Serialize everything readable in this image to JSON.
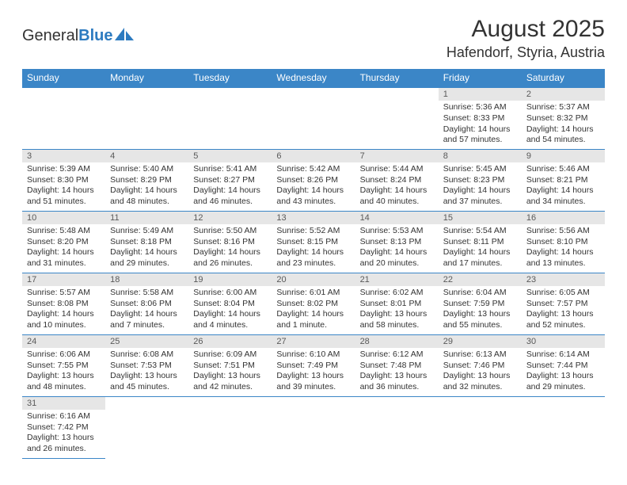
{
  "logo": {
    "general": "General",
    "blue": "Blue"
  },
  "title": "August 2025",
  "location": "Hafendorf, Styria, Austria",
  "colors": {
    "header_bg": "#3b86c7",
    "header_fg": "#ffffff",
    "daynum_bg": "#e6e6e6",
    "daynum_fg": "#595959",
    "border": "#3b86c7",
    "text": "#333333",
    "logo_blue": "#2d7bc0"
  },
  "weekdays": [
    "Sunday",
    "Monday",
    "Tuesday",
    "Wednesday",
    "Thursday",
    "Friday",
    "Saturday"
  ],
  "grid": [
    [
      null,
      null,
      null,
      null,
      null,
      {
        "day": "1",
        "sunrise": "Sunrise: 5:36 AM",
        "sunset": "Sunset: 8:33 PM",
        "daylight1": "Daylight: 14 hours",
        "daylight2": "and 57 minutes."
      },
      {
        "day": "2",
        "sunrise": "Sunrise: 5:37 AM",
        "sunset": "Sunset: 8:32 PM",
        "daylight1": "Daylight: 14 hours",
        "daylight2": "and 54 minutes."
      }
    ],
    [
      {
        "day": "3",
        "sunrise": "Sunrise: 5:39 AM",
        "sunset": "Sunset: 8:30 PM",
        "daylight1": "Daylight: 14 hours",
        "daylight2": "and 51 minutes."
      },
      {
        "day": "4",
        "sunrise": "Sunrise: 5:40 AM",
        "sunset": "Sunset: 8:29 PM",
        "daylight1": "Daylight: 14 hours",
        "daylight2": "and 48 minutes."
      },
      {
        "day": "5",
        "sunrise": "Sunrise: 5:41 AM",
        "sunset": "Sunset: 8:27 PM",
        "daylight1": "Daylight: 14 hours",
        "daylight2": "and 46 minutes."
      },
      {
        "day": "6",
        "sunrise": "Sunrise: 5:42 AM",
        "sunset": "Sunset: 8:26 PM",
        "daylight1": "Daylight: 14 hours",
        "daylight2": "and 43 minutes."
      },
      {
        "day": "7",
        "sunrise": "Sunrise: 5:44 AM",
        "sunset": "Sunset: 8:24 PM",
        "daylight1": "Daylight: 14 hours",
        "daylight2": "and 40 minutes."
      },
      {
        "day": "8",
        "sunrise": "Sunrise: 5:45 AM",
        "sunset": "Sunset: 8:23 PM",
        "daylight1": "Daylight: 14 hours",
        "daylight2": "and 37 minutes."
      },
      {
        "day": "9",
        "sunrise": "Sunrise: 5:46 AM",
        "sunset": "Sunset: 8:21 PM",
        "daylight1": "Daylight: 14 hours",
        "daylight2": "and 34 minutes."
      }
    ],
    [
      {
        "day": "10",
        "sunrise": "Sunrise: 5:48 AM",
        "sunset": "Sunset: 8:20 PM",
        "daylight1": "Daylight: 14 hours",
        "daylight2": "and 31 minutes."
      },
      {
        "day": "11",
        "sunrise": "Sunrise: 5:49 AM",
        "sunset": "Sunset: 8:18 PM",
        "daylight1": "Daylight: 14 hours",
        "daylight2": "and 29 minutes."
      },
      {
        "day": "12",
        "sunrise": "Sunrise: 5:50 AM",
        "sunset": "Sunset: 8:16 PM",
        "daylight1": "Daylight: 14 hours",
        "daylight2": "and 26 minutes."
      },
      {
        "day": "13",
        "sunrise": "Sunrise: 5:52 AM",
        "sunset": "Sunset: 8:15 PM",
        "daylight1": "Daylight: 14 hours",
        "daylight2": "and 23 minutes."
      },
      {
        "day": "14",
        "sunrise": "Sunrise: 5:53 AM",
        "sunset": "Sunset: 8:13 PM",
        "daylight1": "Daylight: 14 hours",
        "daylight2": "and 20 minutes."
      },
      {
        "day": "15",
        "sunrise": "Sunrise: 5:54 AM",
        "sunset": "Sunset: 8:11 PM",
        "daylight1": "Daylight: 14 hours",
        "daylight2": "and 17 minutes."
      },
      {
        "day": "16",
        "sunrise": "Sunrise: 5:56 AM",
        "sunset": "Sunset: 8:10 PM",
        "daylight1": "Daylight: 14 hours",
        "daylight2": "and 13 minutes."
      }
    ],
    [
      {
        "day": "17",
        "sunrise": "Sunrise: 5:57 AM",
        "sunset": "Sunset: 8:08 PM",
        "daylight1": "Daylight: 14 hours",
        "daylight2": "and 10 minutes."
      },
      {
        "day": "18",
        "sunrise": "Sunrise: 5:58 AM",
        "sunset": "Sunset: 8:06 PM",
        "daylight1": "Daylight: 14 hours",
        "daylight2": "and 7 minutes."
      },
      {
        "day": "19",
        "sunrise": "Sunrise: 6:00 AM",
        "sunset": "Sunset: 8:04 PM",
        "daylight1": "Daylight: 14 hours",
        "daylight2": "and 4 minutes."
      },
      {
        "day": "20",
        "sunrise": "Sunrise: 6:01 AM",
        "sunset": "Sunset: 8:02 PM",
        "daylight1": "Daylight: 14 hours",
        "daylight2": "and 1 minute."
      },
      {
        "day": "21",
        "sunrise": "Sunrise: 6:02 AM",
        "sunset": "Sunset: 8:01 PM",
        "daylight1": "Daylight: 13 hours",
        "daylight2": "and 58 minutes."
      },
      {
        "day": "22",
        "sunrise": "Sunrise: 6:04 AM",
        "sunset": "Sunset: 7:59 PM",
        "daylight1": "Daylight: 13 hours",
        "daylight2": "and 55 minutes."
      },
      {
        "day": "23",
        "sunrise": "Sunrise: 6:05 AM",
        "sunset": "Sunset: 7:57 PM",
        "daylight1": "Daylight: 13 hours",
        "daylight2": "and 52 minutes."
      }
    ],
    [
      {
        "day": "24",
        "sunrise": "Sunrise: 6:06 AM",
        "sunset": "Sunset: 7:55 PM",
        "daylight1": "Daylight: 13 hours",
        "daylight2": "and 48 minutes."
      },
      {
        "day": "25",
        "sunrise": "Sunrise: 6:08 AM",
        "sunset": "Sunset: 7:53 PM",
        "daylight1": "Daylight: 13 hours",
        "daylight2": "and 45 minutes."
      },
      {
        "day": "26",
        "sunrise": "Sunrise: 6:09 AM",
        "sunset": "Sunset: 7:51 PM",
        "daylight1": "Daylight: 13 hours",
        "daylight2": "and 42 minutes."
      },
      {
        "day": "27",
        "sunrise": "Sunrise: 6:10 AM",
        "sunset": "Sunset: 7:49 PM",
        "daylight1": "Daylight: 13 hours",
        "daylight2": "and 39 minutes."
      },
      {
        "day": "28",
        "sunrise": "Sunrise: 6:12 AM",
        "sunset": "Sunset: 7:48 PM",
        "daylight1": "Daylight: 13 hours",
        "daylight2": "and 36 minutes."
      },
      {
        "day": "29",
        "sunrise": "Sunrise: 6:13 AM",
        "sunset": "Sunset: 7:46 PM",
        "daylight1": "Daylight: 13 hours",
        "daylight2": "and 32 minutes."
      },
      {
        "day": "30",
        "sunrise": "Sunrise: 6:14 AM",
        "sunset": "Sunset: 7:44 PM",
        "daylight1": "Daylight: 13 hours",
        "daylight2": "and 29 minutes."
      }
    ],
    [
      {
        "day": "31",
        "sunrise": "Sunrise: 6:16 AM",
        "sunset": "Sunset: 7:42 PM",
        "daylight1": "Daylight: 13 hours",
        "daylight2": "and 26 minutes."
      },
      null,
      null,
      null,
      null,
      null,
      null
    ]
  ]
}
